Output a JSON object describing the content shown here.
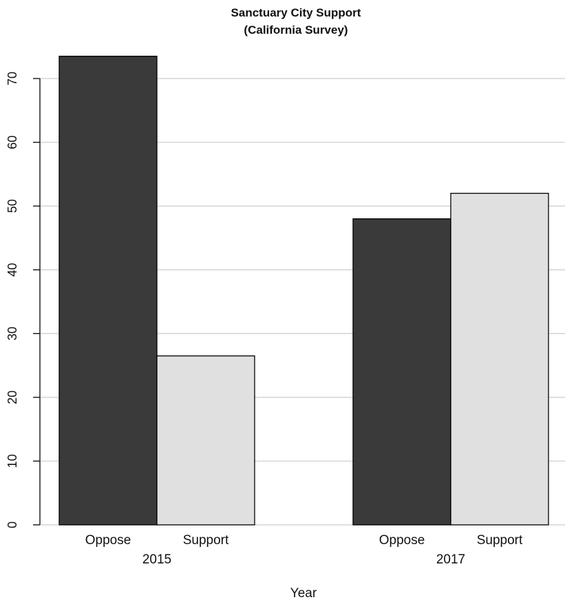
{
  "chart_data": {
    "type": "bar",
    "title": "Sanctuary City Support",
    "subtitle": "(California Survey)",
    "xlabel": "Year",
    "ylabel": "",
    "groups": [
      "2015",
      "2017"
    ],
    "categories": [
      "Oppose",
      "Support"
    ],
    "series": [
      {
        "group": "2015",
        "values": [
          73.5,
          26.5
        ]
      },
      {
        "group": "2017",
        "values": [
          48,
          52
        ]
      }
    ],
    "ylim": [
      0,
      70
    ],
    "yticks": [
      "0",
      "10",
      "20",
      "30",
      "40",
      "50",
      "60",
      "70"
    ],
    "grid": true,
    "colors": {
      "Oppose": "#3a3a3a",
      "Support": "#e0e0e0",
      "grid": "#cccccc",
      "axis": "#000000"
    }
  }
}
